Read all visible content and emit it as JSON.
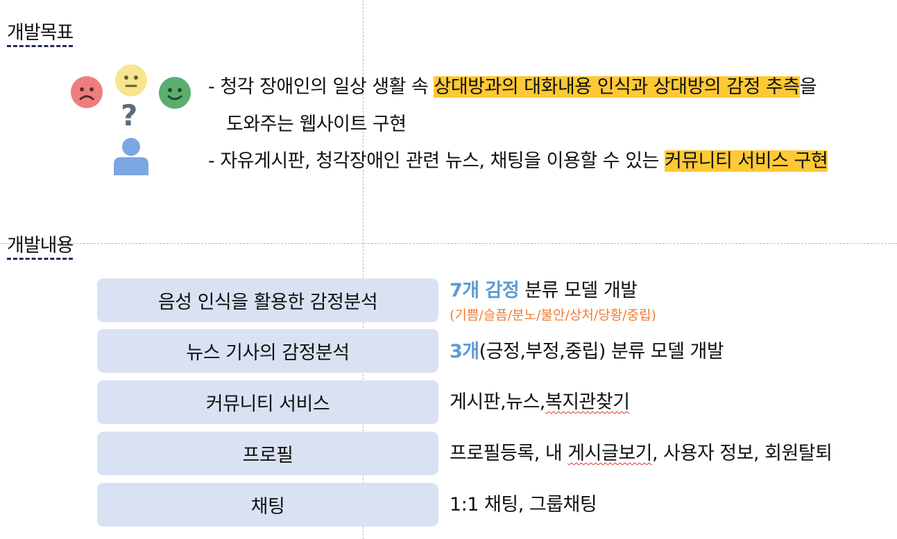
{
  "goal_section": {
    "title": "개발목표",
    "line1_prefix": "- 청각 장애인의 일상 생활 속 ",
    "line1_highlight": "상대방과의 대화내용 인식과 상대방의  감정 추측",
    "line1_suffix": "을",
    "line1_cont": "도와주는 웹사이트 구현",
    "line2_prefix": "- 자유게시판, 청각장애인 관련 뉴스, 채팅을 이용할 수 있는 ",
    "line2_highlight": "커뮤니티 서비스 구현"
  },
  "content_section": {
    "title": "개발내용",
    "items": [
      {
        "label": "음성 인식을 활용한 감정분석",
        "desc_accent": "7개 감정",
        "desc_rest": " 분류 모델 개발",
        "desc_sub": "(기쁨/슬픔/분노/불안/상처/당황/중립)"
      },
      {
        "label": "뉴스 기사의 감정분석",
        "desc_accent": "3개",
        "desc_rest": "(긍정,부정,중립) 분류 모델 개발"
      },
      {
        "label": "커뮤니티 서비스",
        "desc_pre": "게시판,뉴스,",
        "desc_squiggle": "복지관찾기"
      },
      {
        "label": "프로필",
        "desc_pre": "프로필등록, 내 ",
        "desc_squiggle": "게시글보기",
        "desc_post": ", 사용자 정보, 회원탈퇴"
      },
      {
        "label": "채팅",
        "desc_pre": "1:1 채팅, 그룹채팅"
      }
    ]
  },
  "icons": [
    "sad-face-icon",
    "neutral-face-icon",
    "happy-face-icon",
    "question-mark-icon",
    "person-icon"
  ],
  "colors": {
    "highlight": "#fec934",
    "box_fill": "#d9e2f3",
    "accent_blue": "#5b9bd5",
    "accent_orange": "#ed7d31"
  }
}
